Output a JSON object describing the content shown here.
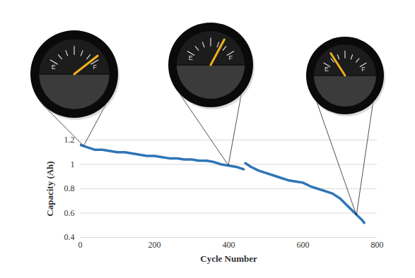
{
  "chart_data": {
    "type": "line",
    "x_label": "Cycle Number",
    "y_label": "Capacity (Ah)",
    "x": [
      0,
      20,
      40,
      60,
      80,
      100,
      120,
      140,
      160,
      180,
      200,
      220,
      240,
      260,
      280,
      300,
      320,
      340,
      360,
      380,
      400,
      420,
      440,
      442,
      445,
      460,
      480,
      500,
      520,
      540,
      560,
      580,
      600,
      620,
      640,
      660,
      680,
      700,
      720,
      740,
      760,
      765
    ],
    "series": [
      {
        "name": "Capacity",
        "color": "#2e75b6",
        "values": [
          1.16,
          1.14,
          1.12,
          1.12,
          1.11,
          1.1,
          1.1,
          1.09,
          1.08,
          1.07,
          1.07,
          1.06,
          1.05,
          1.05,
          1.04,
          1.04,
          1.03,
          1.03,
          1.02,
          1.0,
          0.99,
          0.98,
          0.96,
          null,
          1.01,
          0.98,
          0.95,
          0.93,
          0.91,
          0.89,
          0.87,
          0.86,
          0.85,
          0.82,
          0.8,
          0.78,
          0.76,
          0.72,
          0.66,
          0.6,
          0.54,
          0.52
        ]
      }
    ],
    "xlim": [
      0,
      800
    ],
    "xticks": [
      0,
      200,
      400,
      600,
      800
    ],
    "ylim": [
      0.4,
      1.2
    ],
    "yticks": [
      0.4,
      0.6,
      0.8,
      1,
      1.2
    ],
    "grid": true,
    "annotations": [
      {
        "x": 10,
        "y": 1.15,
        "text": [
          "E",
          "F"
        ]
      },
      {
        "x": 400,
        "y": 0.99,
        "text": [
          "E",
          "F"
        ]
      },
      {
        "x": 745,
        "y": 0.58,
        "text": [
          "E",
          "F"
        ]
      }
    ]
  }
}
